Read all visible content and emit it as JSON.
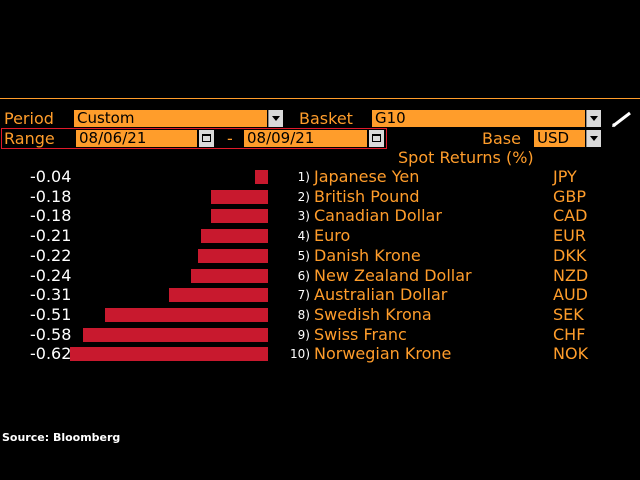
{
  "controls": {
    "period_label": "Period",
    "period_value": "Custom",
    "basket_label": "Basket",
    "basket_value": "G10",
    "range_label": "Range",
    "range_start": "08/06/21",
    "range_sep": "-",
    "range_end": "08/09/21",
    "base_label": "Base",
    "base_value": "USD"
  },
  "table_title": "Spot Returns (%)",
  "source": "Source: Bloomberg",
  "colors": {
    "accent": "#ff9d2b",
    "bar": "#c8192e",
    "background": "#000000"
  },
  "chart_data": {
    "type": "bar",
    "title": "Spot Returns (%)",
    "orientation": "horizontal",
    "categories": [
      "Japanese Yen",
      "British Pound",
      "Canadian Dollar",
      "Euro",
      "Danish Krone",
      "New Zealand Dollar",
      "Australian Dollar",
      "Swedish Krona",
      "Swiss Franc",
      "Norwegian Krone"
    ],
    "values": [
      -0.04,
      -0.18,
      -0.18,
      -0.21,
      -0.22,
      -0.24,
      -0.31,
      -0.51,
      -0.58,
      -0.62
    ],
    "xlim": [
      -0.62,
      0
    ]
  },
  "rows": [
    {
      "value": "-0.04",
      "rank": "1)",
      "name": "Japanese Yen",
      "code": "JPY"
    },
    {
      "value": "-0.18",
      "rank": "2)",
      "name": "British Pound",
      "code": "GBP"
    },
    {
      "value": "-0.18",
      "rank": "3)",
      "name": "Canadian Dollar",
      "code": "CAD"
    },
    {
      "value": "-0.21",
      "rank": "4)",
      "name": "Euro",
      "code": "EUR"
    },
    {
      "value": "-0.22",
      "rank": "5)",
      "name": "Danish Krone",
      "code": "DKK"
    },
    {
      "value": "-0.24",
      "rank": "6)",
      "name": "New Zealand Dollar",
      "code": "NZD"
    },
    {
      "value": "-0.31",
      "rank": "7)",
      "name": "Australian Dollar",
      "code": "AUD"
    },
    {
      "value": "-0.51",
      "rank": "8)",
      "name": "Swedish Krona",
      "code": "SEK"
    },
    {
      "value": "-0.58",
      "rank": "9)",
      "name": "Swiss Franc",
      "code": "CHF"
    },
    {
      "value": "-0.62",
      "rank": "10)",
      "name": "Norwegian Krone",
      "code": "NOK"
    }
  ]
}
